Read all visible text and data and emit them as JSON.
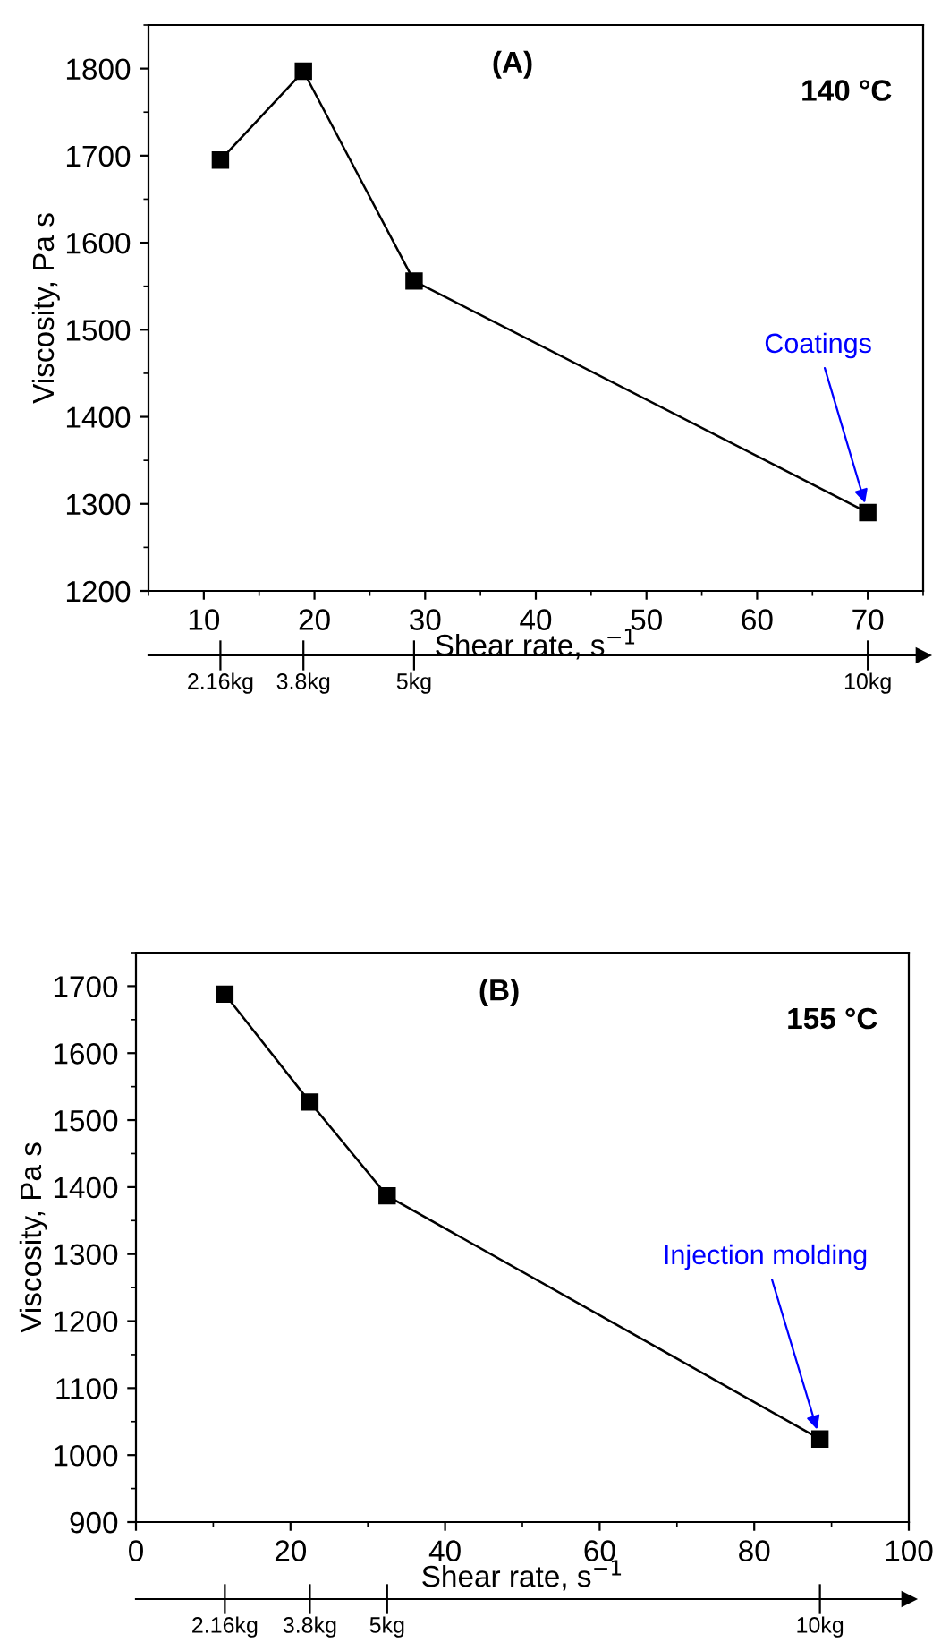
{
  "chart_data": [
    {
      "type": "line",
      "xlabel": "Shear rate, s$^{−1}$",
      "ylabel": "Viscosity, Pa s",
      "x": [
        11.5,
        19,
        29,
        70
      ],
      "values": [
        1695,
        1797,
        1556,
        1290
      ],
      "color": "#000000",
      "marker": "square",
      "line_style": "solid",
      "xlim": [
        5,
        75
      ],
      "xticks": [
        10,
        20,
        30,
        40,
        50,
        60,
        70
      ],
      "ylim": [
        1200,
        1850
      ],
      "yticks": [
        1200,
        1300,
        1400,
        1500,
        1600,
        1700,
        1800
      ],
      "grid": false,
      "annotations": [
        "(A)",
        "140 °C",
        {
          "text": "Coatings",
          "x": 70,
          "y": 1290
        },
        {
          "text": "2.16kg",
          "x": 11.5
        },
        {
          "text": "3.8kg",
          "x": 19
        },
        {
          "text": "5kg",
          "x": 29
        },
        {
          "text": "10kg",
          "x": 70
        }
      ]
    },
    {
      "type": "line",
      "xlabel": "Shear rate, s$^{−1}$",
      "ylabel": "Viscosity, Pa s",
      "x": [
        11.5,
        22.5,
        32.5,
        88.5
      ],
      "values": [
        1688,
        1527,
        1387,
        1024
      ],
      "color": "#000000",
      "marker": "square",
      "line_style": "solid",
      "xlim": [
        0,
        100
      ],
      "xticks": [
        0,
        20,
        40,
        60,
        80,
        100
      ],
      "ylim": [
        900,
        1750
      ],
      "yticks": [
        900,
        1000,
        1100,
        1200,
        1300,
        1400,
        1500,
        1600,
        1700
      ],
      "grid": false,
      "annotations": [
        "(B)",
        "155 °C",
        {
          "text": "Injection molding",
          "x": 88.5,
          "y": 1024
        },
        {
          "text": "2.16kg",
          "x": 11.5
        },
        {
          "text": "3.8kg",
          "x": 22.5
        },
        {
          "text": "5kg",
          "x": 32.5
        },
        {
          "text": "10kg",
          "x": 88.5
        }
      ]
    }
  ]
}
